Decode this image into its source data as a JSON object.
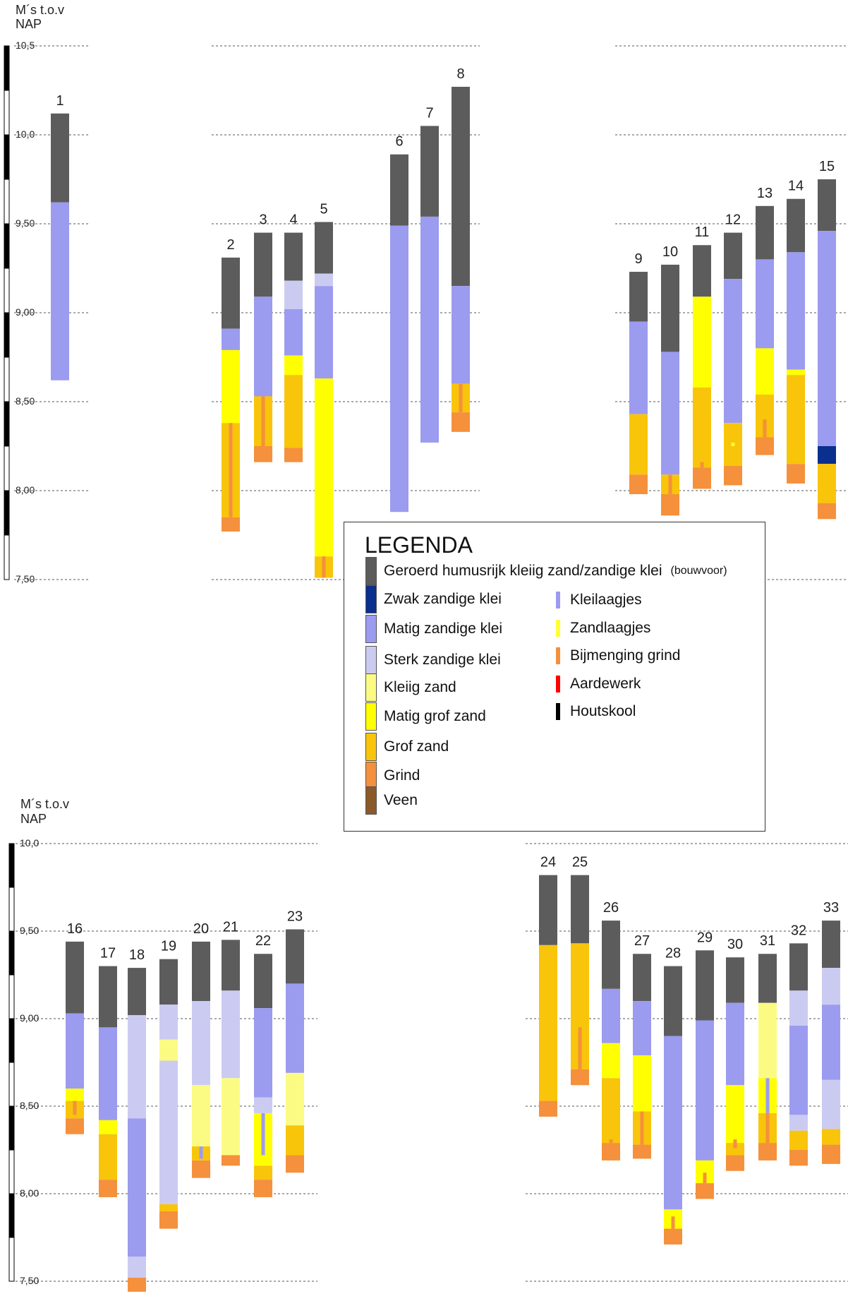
{
  "colors": {
    "dark": "#5c5c5c",
    "zwak": "#0a2f8c",
    "matig": "#9b9bf0",
    "sterk": "#cbcbf2",
    "kleiig": "#fbfb84",
    "matiggrof": "#ffff00",
    "grof": "#f8c50a",
    "grind": "#f5903c",
    "veen": "#8a5a2b",
    "kleilaag": "#9b9bf0",
    "zandlaag": "#ffff33",
    "bijmenging": "#f5903c",
    "aardewerk": "#ff0000",
    "houtskool": "#000000"
  },
  "panels": {
    "top": {
      "axis_title_line1": "M´s t.o.v",
      "axis_title_line2": "NAP",
      "ticks": [
        {
          "v": 10.5,
          "label": "10,5"
        },
        {
          "v": 10.0,
          "label": "10,0"
        },
        {
          "v": 9.5,
          "label": "9,50"
        },
        {
          "v": 9.0,
          "label": "9,00"
        },
        {
          "v": 8.5,
          "label": "8,50"
        },
        {
          "v": 8.0,
          "label": "8,00"
        },
        {
          "v": 7.5,
          "label": "7,50"
        }
      ]
    },
    "bottom": {
      "axis_title_line1": "M´s t.o.v",
      "axis_title_line2": "NAP",
      "ticks": [
        {
          "v": 10.0,
          "label": "10,0"
        },
        {
          "v": 9.5,
          "label": "9,50"
        },
        {
          "v": 9.0,
          "label": "9,00"
        },
        {
          "v": 8.5,
          "label": "8,50"
        },
        {
          "v": 8.0,
          "label": "8,00"
        },
        {
          "v": 7.5,
          "label": "7,50"
        }
      ]
    }
  },
  "cores": [
    {
      "id": "1",
      "panel": "top",
      "top": 10.12,
      "layers": [
        {
          "to": 9.62,
          "t": "dark"
        },
        {
          "to": 8.62,
          "t": "matig"
        }
      ],
      "marks": []
    },
    {
      "id": "2",
      "panel": "top",
      "top": 9.31,
      "layers": [
        {
          "to": 8.91,
          "t": "dark"
        },
        {
          "to": 8.79,
          "t": "matig"
        },
        {
          "to": 8.38,
          "t": "matiggrof"
        },
        {
          "to": 7.85,
          "t": "grof"
        },
        {
          "to": 7.77,
          "t": "grind"
        }
      ],
      "marks": [
        {
          "t": "bijmenging",
          "from": 8.38,
          "to": 7.85
        }
      ]
    },
    {
      "id": "3",
      "panel": "top",
      "top": 9.45,
      "layers": [
        {
          "to": 9.09,
          "t": "dark"
        },
        {
          "to": 8.53,
          "t": "matig"
        },
        {
          "to": 8.25,
          "t": "grof"
        },
        {
          "to": 8.16,
          "t": "grind"
        }
      ],
      "marks": [
        {
          "t": "bijmenging",
          "from": 8.53,
          "to": 8.25
        }
      ]
    },
    {
      "id": "4",
      "panel": "top",
      "top": 9.45,
      "layers": [
        {
          "to": 9.18,
          "t": "dark"
        },
        {
          "to": 9.02,
          "t": "sterk"
        },
        {
          "to": 8.76,
          "t": "matig"
        },
        {
          "to": 8.65,
          "t": "matiggrof"
        },
        {
          "to": 8.24,
          "t": "grof"
        },
        {
          "to": 8.16,
          "t": "grind"
        }
      ],
      "marks": []
    },
    {
      "id": "5",
      "panel": "top",
      "top": 9.51,
      "layers": [
        {
          "to": 9.22,
          "t": "dark"
        },
        {
          "to": 9.15,
          "t": "sterk"
        },
        {
          "to": 8.63,
          "t": "matig"
        },
        {
          "to": 7.63,
          "t": "matiggrof"
        },
        {
          "to": 7.51,
          "t": "grof"
        }
      ],
      "marks": [
        {
          "t": "bijmenging",
          "from": 7.63,
          "to": 7.51
        }
      ]
    },
    {
      "id": "6",
      "panel": "top",
      "top": 9.89,
      "layers": [
        {
          "to": 9.49,
          "t": "dark"
        },
        {
          "to": 7.88,
          "t": "matig"
        }
      ],
      "marks": []
    },
    {
      "id": "7",
      "panel": "top",
      "top": 10.05,
      "layers": [
        {
          "to": 9.54,
          "t": "dark"
        },
        {
          "to": 8.27,
          "t": "matig"
        }
      ],
      "marks": []
    },
    {
      "id": "8",
      "panel": "top",
      "top": 10.27,
      "layers": [
        {
          "to": 9.15,
          "t": "dark"
        },
        {
          "to": 8.6,
          "t": "matig"
        },
        {
          "to": 8.44,
          "t": "grof"
        },
        {
          "to": 8.33,
          "t": "grind"
        }
      ],
      "marks": [
        {
          "t": "bijmenging",
          "from": 8.6,
          "to": 8.44
        }
      ]
    },
    {
      "id": "9",
      "panel": "top",
      "top": 9.23,
      "layers": [
        {
          "to": 8.95,
          "t": "dark"
        },
        {
          "to": 8.43,
          "t": "matig"
        },
        {
          "to": 8.09,
          "t": "grof"
        },
        {
          "to": 7.98,
          "t": "grind"
        }
      ],
      "marks": []
    },
    {
      "id": "10",
      "panel": "top",
      "top": 9.27,
      "layers": [
        {
          "to": 8.78,
          "t": "dark"
        },
        {
          "to": 8.09,
          "t": "matig"
        },
        {
          "to": 7.98,
          "t": "grof"
        },
        {
          "to": 7.86,
          "t": "grind"
        }
      ],
      "marks": [
        {
          "t": "bijmenging",
          "from": 8.09,
          "to": 7.98
        }
      ]
    },
    {
      "id": "11",
      "panel": "top",
      "top": 9.38,
      "layers": [
        {
          "to": 9.09,
          "t": "dark"
        },
        {
          "to": 8.58,
          "t": "matiggrof"
        },
        {
          "to": 8.13,
          "t": "grof"
        },
        {
          "to": 8.01,
          "t": "grind"
        }
      ],
      "marks": [
        {
          "t": "bijmenging",
          "from": 8.16,
          "to": 8.13
        }
      ]
    },
    {
      "id": "12",
      "panel": "top",
      "top": 9.45,
      "layers": [
        {
          "to": 9.19,
          "t": "dark"
        },
        {
          "to": 8.38,
          "t": "matig"
        },
        {
          "to": 8.14,
          "t": "grof"
        },
        {
          "to": 8.03,
          "t": "grind"
        }
      ],
      "marks": [
        {
          "t": "zandlaag",
          "from": 8.27,
          "to": 8.25
        }
      ]
    },
    {
      "id": "13",
      "panel": "top",
      "top": 9.6,
      "layers": [
        {
          "to": 9.3,
          "t": "dark"
        },
        {
          "to": 8.8,
          "t": "matig"
        },
        {
          "to": 8.54,
          "t": "matiggrof"
        },
        {
          "to": 8.3,
          "t": "grof"
        },
        {
          "to": 8.2,
          "t": "grind"
        }
      ],
      "marks": [
        {
          "t": "bijmenging",
          "from": 8.4,
          "to": 8.3
        }
      ]
    },
    {
      "id": "14",
      "panel": "top",
      "top": 9.64,
      "layers": [
        {
          "to": 9.34,
          "t": "dark"
        },
        {
          "to": 8.68,
          "t": "matig"
        },
        {
          "to": 8.65,
          "t": "matiggrof"
        },
        {
          "to": 8.15,
          "t": "grof"
        },
        {
          "to": 8.04,
          "t": "grind"
        }
      ],
      "marks": []
    },
    {
      "id": "15",
      "panel": "top",
      "top": 9.75,
      "layers": [
        {
          "to": 9.46,
          "t": "dark"
        },
        {
          "to": 8.25,
          "t": "matig"
        },
        {
          "to": 8.15,
          "t": "zwak"
        },
        {
          "to": 7.93,
          "t": "grof"
        },
        {
          "to": 7.84,
          "t": "grind"
        }
      ],
      "marks": []
    },
    {
      "id": "16",
      "panel": "bottom",
      "top": 9.44,
      "layers": [
        {
          "to": 9.03,
          "t": "dark"
        },
        {
          "to": 8.6,
          "t": "matig"
        },
        {
          "to": 8.53,
          "t": "matiggrof"
        },
        {
          "to": 8.43,
          "t": "grof"
        },
        {
          "to": 8.34,
          "t": "grind"
        }
      ],
      "marks": [
        {
          "t": "bijmenging",
          "from": 8.53,
          "to": 8.45
        }
      ]
    },
    {
      "id": "17",
      "panel": "bottom",
      "top": 9.3,
      "layers": [
        {
          "to": 8.95,
          "t": "dark"
        },
        {
          "to": 8.42,
          "t": "matig"
        },
        {
          "to": 8.34,
          "t": "matiggrof"
        },
        {
          "to": 8.08,
          "t": "grof"
        },
        {
          "to": 7.98,
          "t": "grind"
        }
      ],
      "marks": []
    },
    {
      "id": "18",
      "panel": "bottom",
      "top": 9.29,
      "layers": [
        {
          "to": 9.02,
          "t": "dark"
        },
        {
          "to": 8.43,
          "t": "sterk"
        },
        {
          "to": 7.64,
          "t": "matig"
        },
        {
          "to": 7.52,
          "t": "sterk"
        },
        {
          "to": 7.44,
          "t": "grind"
        }
      ],
      "marks": []
    },
    {
      "id": "19",
      "panel": "bottom",
      "top": 9.34,
      "layers": [
        {
          "to": 9.08,
          "t": "dark"
        },
        {
          "to": 8.88,
          "t": "sterk"
        },
        {
          "to": 8.76,
          "t": "kleiig"
        },
        {
          "to": 7.94,
          "t": "sterk"
        },
        {
          "to": 7.9,
          "t": "grof"
        },
        {
          "to": 7.8,
          "t": "grind"
        }
      ],
      "marks": []
    },
    {
      "id": "20",
      "panel": "bottom",
      "top": 9.44,
      "layers": [
        {
          "to": 9.1,
          "t": "dark"
        },
        {
          "to": 8.62,
          "t": "sterk"
        },
        {
          "to": 8.27,
          "t": "kleiig"
        },
        {
          "to": 8.19,
          "t": "grof"
        },
        {
          "to": 8.09,
          "t": "grind"
        }
      ],
      "marks": [
        {
          "t": "kleilaag",
          "from": 8.27,
          "to": 8.2
        }
      ]
    },
    {
      "id": "21",
      "panel": "bottom",
      "top": 9.45,
      "layers": [
        {
          "to": 9.16,
          "t": "dark"
        },
        {
          "to": 8.66,
          "t": "sterk"
        },
        {
          "to": 8.22,
          "t": "kleiig"
        },
        {
          "to": 8.16,
          "t": "grind"
        }
      ],
      "marks": []
    },
    {
      "id": "22",
      "panel": "bottom",
      "top": 9.37,
      "layers": [
        {
          "to": 9.06,
          "t": "dark"
        },
        {
          "to": 8.55,
          "t": "matig"
        },
        {
          "to": 8.46,
          "t": "sterk"
        },
        {
          "to": 8.16,
          "t": "matiggrof"
        },
        {
          "to": 8.08,
          "t": "grof"
        },
        {
          "to": 7.98,
          "t": "grind"
        }
      ],
      "marks": [
        {
          "t": "kleilaag",
          "from": 8.46,
          "to": 8.22
        }
      ]
    },
    {
      "id": "23",
      "panel": "bottom",
      "top": 9.51,
      "layers": [
        {
          "to": 9.2,
          "t": "dark"
        },
        {
          "to": 8.69,
          "t": "matig"
        },
        {
          "to": 8.39,
          "t": "kleiig"
        },
        {
          "to": 8.22,
          "t": "grof"
        },
        {
          "to": 8.12,
          "t": "grind"
        }
      ],
      "marks": []
    },
    {
      "id": "24",
      "panel": "bottom",
      "top": 9.82,
      "layers": [
        {
          "to": 9.42,
          "t": "dark"
        },
        {
          "to": 8.53,
          "t": "grof"
        },
        {
          "to": 8.44,
          "t": "grind"
        }
      ],
      "marks": []
    },
    {
      "id": "25",
      "panel": "bottom",
      "top": 9.82,
      "layers": [
        {
          "to": 9.43,
          "t": "dark"
        },
        {
          "to": 8.71,
          "t": "grof"
        },
        {
          "to": 8.62,
          "t": "grind"
        }
      ],
      "marks": [
        {
          "t": "bijmenging",
          "from": 8.95,
          "to": 8.71
        }
      ]
    },
    {
      "id": "26",
      "panel": "bottom",
      "top": 9.56,
      "layers": [
        {
          "to": 9.17,
          "t": "dark"
        },
        {
          "to": 8.86,
          "t": "matig"
        },
        {
          "to": 8.66,
          "t": "matiggrof"
        },
        {
          "to": 8.29,
          "t": "grof"
        },
        {
          "to": 8.19,
          "t": "grind"
        }
      ],
      "marks": [
        {
          "t": "bijmenging",
          "from": 8.31,
          "to": 8.29
        }
      ]
    },
    {
      "id": "27",
      "panel": "bottom",
      "top": 9.37,
      "layers": [
        {
          "to": 9.1,
          "t": "dark"
        },
        {
          "to": 8.79,
          "t": "matig"
        },
        {
          "to": 8.47,
          "t": "matiggrof"
        },
        {
          "to": 8.28,
          "t": "grof"
        },
        {
          "to": 8.2,
          "t": "grind"
        }
      ],
      "marks": [
        {
          "t": "bijmenging",
          "from": 8.47,
          "to": 8.28
        }
      ]
    },
    {
      "id": "28",
      "panel": "bottom",
      "top": 9.3,
      "layers": [
        {
          "to": 8.9,
          "t": "dark"
        },
        {
          "to": 7.91,
          "t": "matig"
        },
        {
          "to": 7.8,
          "t": "matiggrof"
        },
        {
          "to": 7.71,
          "t": "grind"
        }
      ],
      "marks": [
        {
          "t": "bijmenging",
          "from": 7.87,
          "to": 7.8
        }
      ]
    },
    {
      "id": "29",
      "panel": "bottom",
      "top": 9.39,
      "layers": [
        {
          "to": 8.99,
          "t": "dark"
        },
        {
          "to": 8.19,
          "t": "matig"
        },
        {
          "to": 8.06,
          "t": "matiggrof"
        },
        {
          "to": 7.97,
          "t": "grind"
        }
      ],
      "marks": [
        {
          "t": "bijmenging",
          "from": 8.12,
          "to": 8.06
        }
      ]
    },
    {
      "id": "30",
      "panel": "bottom",
      "top": 9.35,
      "layers": [
        {
          "to": 9.09,
          "t": "dark"
        },
        {
          "to": 8.62,
          "t": "matig"
        },
        {
          "to": 8.29,
          "t": "matiggrof"
        },
        {
          "to": 8.22,
          "t": "grof"
        },
        {
          "to": 8.13,
          "t": "grind"
        }
      ],
      "marks": [
        {
          "t": "bijmenging",
          "from": 8.31,
          "to": 8.26
        }
      ]
    },
    {
      "id": "31",
      "panel": "bottom",
      "top": 9.37,
      "layers": [
        {
          "to": 9.09,
          "t": "dark"
        },
        {
          "to": 8.66,
          "t": "kleiig"
        },
        {
          "to": 8.46,
          "t": "matiggrof"
        },
        {
          "to": 8.29,
          "t": "grof"
        },
        {
          "to": 8.19,
          "t": "grind"
        }
      ],
      "marks": [
        {
          "t": "kleilaag",
          "from": 8.66,
          "to": 8.46
        },
        {
          "t": "bijmenging",
          "from": 8.46,
          "to": 8.29
        }
      ]
    },
    {
      "id": "32",
      "panel": "bottom",
      "top": 9.43,
      "layers": [
        {
          "to": 9.16,
          "t": "dark"
        },
        {
          "to": 8.96,
          "t": "sterk"
        },
        {
          "to": 8.45,
          "t": "matig"
        },
        {
          "to": 8.36,
          "t": "sterk"
        },
        {
          "to": 8.25,
          "t": "grof"
        },
        {
          "to": 8.16,
          "t": "grind"
        }
      ],
      "marks": []
    },
    {
      "id": "33",
      "panel": "bottom",
      "top": 9.56,
      "layers": [
        {
          "to": 9.29,
          "t": "dark"
        },
        {
          "to": 9.08,
          "t": "sterk"
        },
        {
          "to": 8.65,
          "t": "matig"
        },
        {
          "to": 8.37,
          "t": "sterk"
        },
        {
          "to": 8.28,
          "t": "grof"
        },
        {
          "to": 8.17,
          "t": "grind"
        }
      ],
      "marks": []
    }
  ],
  "legend": {
    "title": "LEGENDA",
    "items": [
      {
        "label": "Geroerd humusrijk kleiig zand/zandige klei",
        "sub": "(bouwvoor)",
        "color": "dark"
      },
      {
        "label": "Zwak zandige klei",
        "color": "zwak"
      },
      {
        "label": "Matig zandige klei",
        "color": "matig"
      },
      {
        "label": "Sterk zandige klei",
        "color": "sterk"
      },
      {
        "label": "Kleiig zand",
        "color": "kleiig"
      },
      {
        "label": "Matig grof zand",
        "color": "matiggrof"
      },
      {
        "label": "Grof zand",
        "color": "grof"
      },
      {
        "label": "Grind",
        "color": "grind"
      },
      {
        "label": "Veen",
        "color": "veen"
      }
    ],
    "markers": [
      {
        "label": "Kleilaagjes",
        "color": "kleilaag"
      },
      {
        "label": "Zandlaagjes",
        "color": "zandlaag"
      },
      {
        "label": "Bijmenging grind",
        "color": "bijmenging"
      },
      {
        "label": "Aardewerk",
        "color": "aardewerk"
      },
      {
        "label": "Houtskool",
        "color": "houtskool"
      }
    ]
  }
}
